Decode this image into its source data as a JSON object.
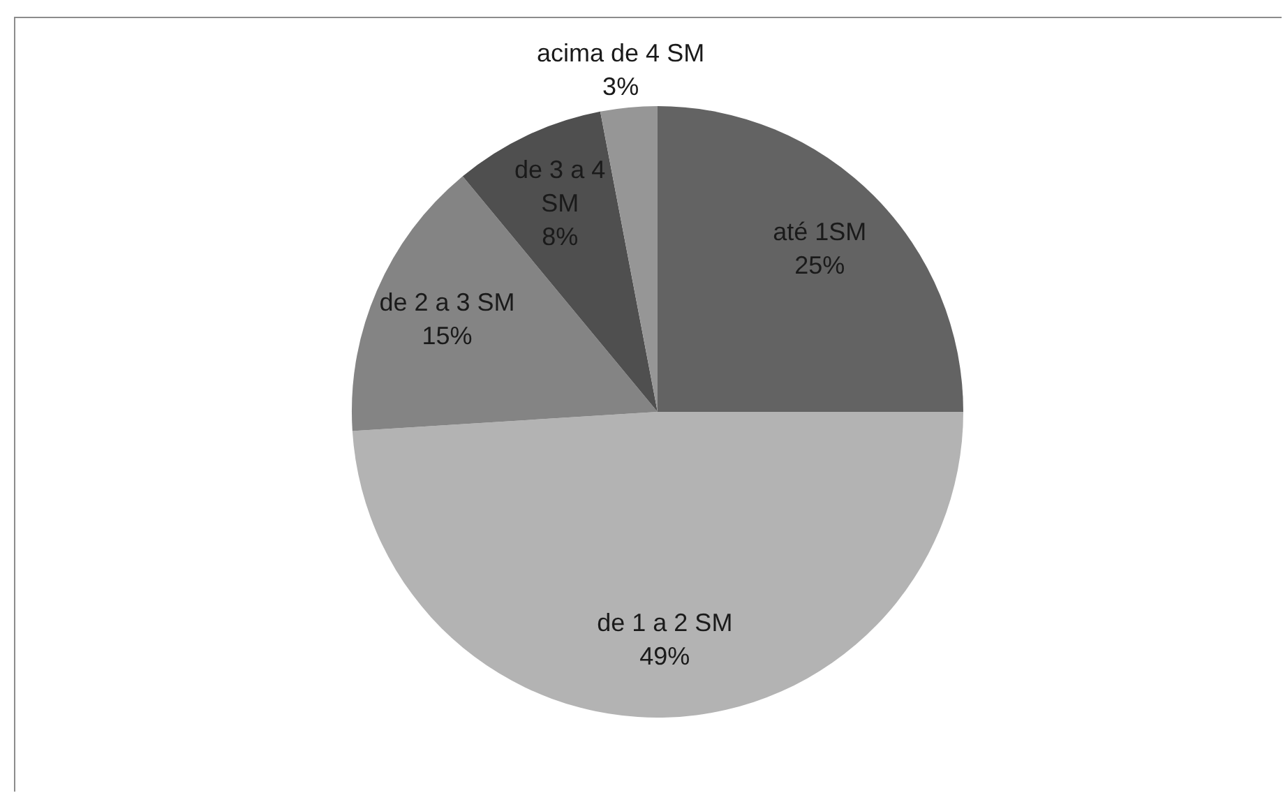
{
  "chart_data": {
    "type": "pie",
    "categories": [
      "até 1SM",
      "de 1 a 2 SM",
      "de 2 a 3 SM",
      "de 3 a 4 SM",
      "acima de 4 SM"
    ],
    "values": [
      25,
      49,
      15,
      8,
      3
    ],
    "value_labels": [
      "25%",
      "49%",
      "15%",
      "8%",
      "3%"
    ],
    "colors": [
      "#636363",
      "#b3b3b3",
      "#848484",
      "#4f4f4f",
      "#969696"
    ],
    "legend": false
  }
}
